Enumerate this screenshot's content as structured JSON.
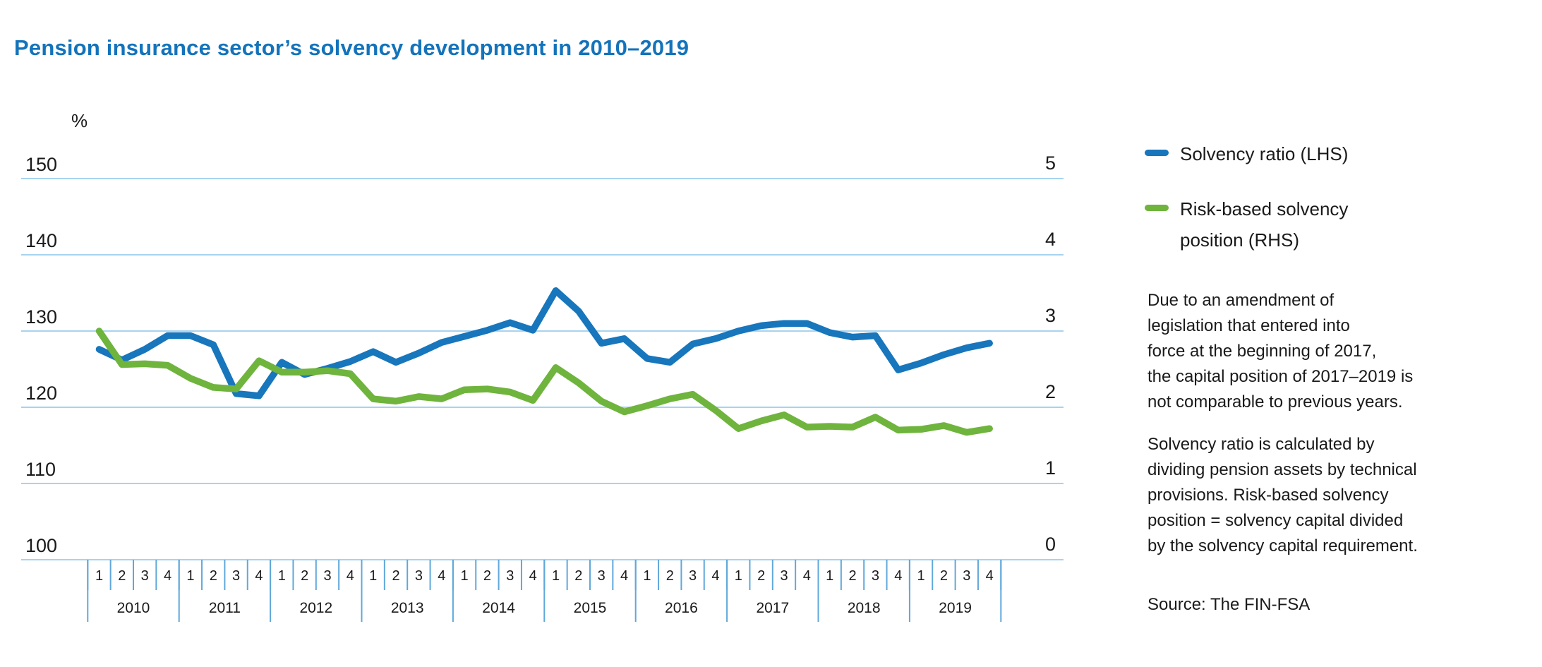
{
  "title": {
    "text": "Pension insurance sector’s solvency development in 2010–2019",
    "color": "#1373bb"
  },
  "colors": {
    "accent_blue": "#1776bc",
    "accent_green": "#6fb43d",
    "gridline": "#a7d3f0",
    "tick": "#60a8da",
    "text": "#1a1a1a"
  },
  "chart_data": {
    "type": "line",
    "title": "Pension insurance sector’s solvency development in 2010–2019",
    "grid": true,
    "legend_position": "right",
    "x": {
      "years": [
        "2010",
        "2011",
        "2012",
        "2013",
        "2014",
        "2015",
        "2016",
        "2017",
        "2018",
        "2019"
      ],
      "quarter_labels": [
        "1",
        "2",
        "3",
        "4"
      ]
    },
    "y_left": {
      "unit_label": "%",
      "min": 100,
      "max": 150,
      "ticks": [
        "150",
        "140",
        "130",
        "120",
        "110",
        "100"
      ]
    },
    "y_right": {
      "min": 0,
      "max": 5,
      "ticks": [
        "5",
        "4",
        "3",
        "2",
        "1",
        "0"
      ]
    },
    "series": [
      {
        "key": "solvency-ratio",
        "name": "Solvency ratio (LHS)",
        "axis": "left",
        "color": "#1776bc",
        "values": [
          127.6,
          126.2,
          127.6,
          129.4,
          129.4,
          128.2,
          121.8,
          121.5,
          125.9,
          124.3,
          125.1,
          126.0,
          127.3,
          125.9,
          127.1,
          128.5,
          129.3,
          130.1,
          131.1,
          130.1,
          135.3,
          132.6,
          128.4,
          129.0,
          126.4,
          125.9,
          128.3,
          129.0,
          130.0,
          130.7,
          131.0,
          131.0,
          129.8,
          129.2,
          129.4,
          124.9,
          125.8,
          126.9,
          127.8,
          128.4
        ]
      },
      {
        "key": "risk-based-solvency-position",
        "name": "Risk-based solvency position (RHS)",
        "axis": "right",
        "color": "#6fb43d",
        "values": [
          3.0,
          2.56,
          2.57,
          2.55,
          2.38,
          2.26,
          2.24,
          2.61,
          2.46,
          2.46,
          2.48,
          2.44,
          2.11,
          2.08,
          2.14,
          2.11,
          2.23,
          2.24,
          2.2,
          2.09,
          2.52,
          2.32,
          2.08,
          1.94,
          2.02,
          2.11,
          2.17,
          1.96,
          1.72,
          1.82,
          1.9,
          1.74,
          1.75,
          1.74,
          1.87,
          1.7,
          1.71,
          1.76,
          1.67,
          1.72
        ]
      }
    ]
  },
  "legend": {
    "items": [
      {
        "color": "#1776bc",
        "label_lines": [
          "Solvency ratio (LHS)"
        ]
      },
      {
        "color": "#6fb43d",
        "label_lines": [
          "Risk-based solvency",
          "position (RHS)"
        ]
      }
    ]
  },
  "notes": {
    "para1_lines": [
      "Due to an amendment of",
      "legislation that entered into",
      "force at the beginning of 2017,",
      "the capital position of 2017–2019 is",
      "not comparable to previous years."
    ],
    "para2_lines": [
      "Solvency ratio is calculated by",
      "dividing pension assets by technical",
      "provisions. Risk-based solvency",
      "position = solvency capital divided",
      "by the solvency capital requirement."
    ]
  },
  "source": {
    "text": "Source: The FIN-FSA"
  }
}
